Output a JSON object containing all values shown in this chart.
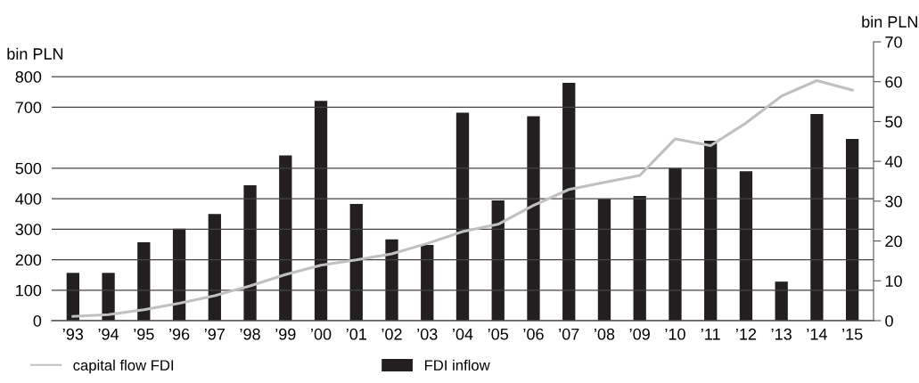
{
  "chart_data": {
    "type": "bar",
    "categories": [
      "’93",
      "’94",
      "’95",
      "’96",
      "’97",
      "’98",
      "’99",
      "’00",
      "’01",
      "’02",
      "’03",
      "’04",
      "’05",
      "’06",
      "’07",
      "’08",
      "’09",
      "’10",
      "’11",
      "’12",
      "’13",
      "’14",
      "’15"
    ],
    "series": [
      {
        "name": "capital flow FDI",
        "type": "line",
        "color": "#c0c0c2",
        "values": [
          14,
          20,
          36,
          57,
          82,
          114,
          151,
          182,
          199,
          219,
          253,
          292,
          316,
          378,
          430,
          453,
          476,
          596,
          574,
          648,
          736,
          787,
          756
        ]
      },
      {
        "name": "FDI inflow",
        "axis": "y2",
        "color": "#231f20",
        "values": [
          12.0,
          12.0,
          19.7,
          23.1,
          26.8,
          34.0,
          41.5,
          55.2,
          29.3,
          20.4,
          19.0,
          52.2,
          30.2,
          51.3,
          59.7,
          30.6,
          31.3,
          38.3,
          45.2,
          37.5,
          9.8,
          51.9,
          45.6
        ]
      }
    ],
    "ylabel": "bin PLN",
    "y2label": "bin PLN",
    "ylim": [
      0,
      914
    ],
    "yticks": [
      0,
      100,
      200,
      300,
      400,
      500,
      700,
      800
    ],
    "y2lim": [
      0,
      70
    ],
    "y2ticks": [
      0,
      10,
      20,
      30,
      40,
      50,
      60,
      70
    ],
    "grid": "y",
    "legend": "bottom"
  }
}
